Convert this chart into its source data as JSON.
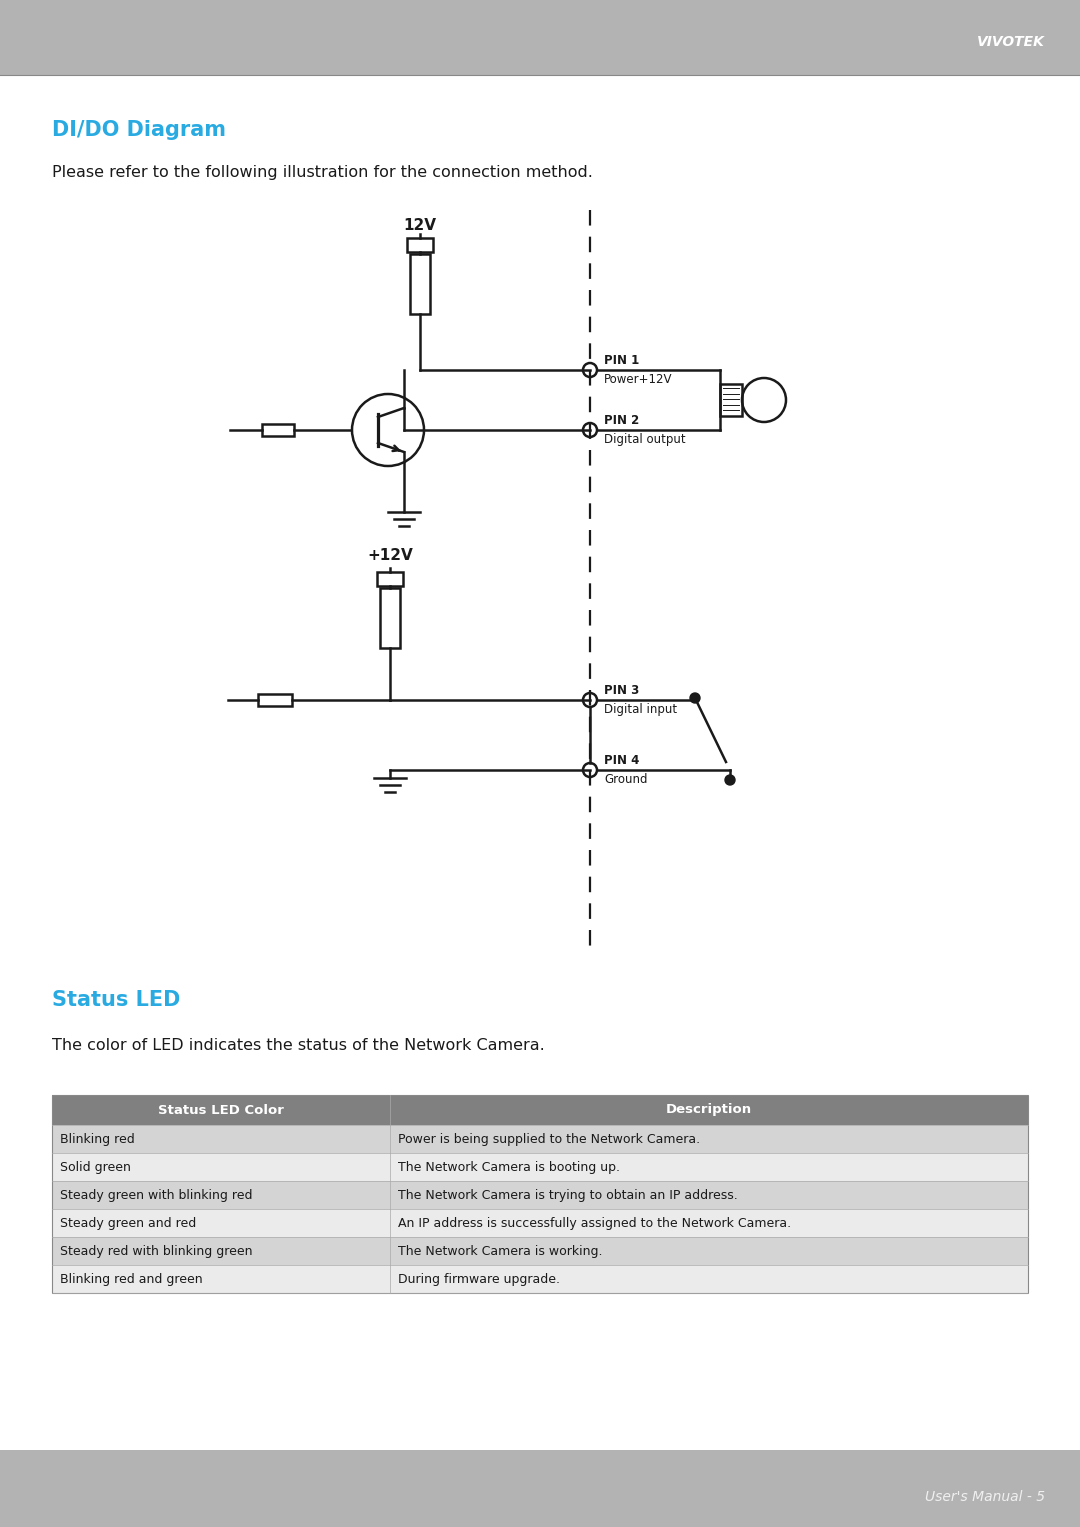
{
  "page_bg": "#ffffff",
  "header_bg": "#b3b3b3",
  "footer_bg": "#b3b3b3",
  "header_text": "VIVOTEK",
  "header_text_color": "#ffffff",
  "footer_text": "User's Manual - 5",
  "footer_text_color": "#f0f0f0",
  "title_dido": "DI/DO Diagram",
  "title_dido_color": "#29abe2",
  "subtitle_dido": "Please refer to the following illustration for the connection method.",
  "title_led": "Status LED",
  "title_led_color": "#29abe2",
  "subtitle_led": "The color of LED indicates the status of the Network Camera.",
  "table_header_bg": "#808080",
  "table_header_color": "#ffffff",
  "table_row_bg_odd": "#d4d4d4",
  "table_row_bg_even": "#ebebeb",
  "table_col1": "Status LED Color",
  "table_col2": "Description",
  "table_rows": [
    [
      "Blinking red",
      "Power is being supplied to the Network Camera."
    ],
    [
      "Solid green",
      "The Network Camera is booting up."
    ],
    [
      "Steady green with blinking red",
      "The Network Camera is trying to obtain an IP address."
    ],
    [
      "Steady green and red",
      "An IP address is successfully assigned to the Network Camera."
    ],
    [
      "Steady red with blinking green",
      "The Network Camera is working."
    ],
    [
      "Blinking red and green",
      "During firmware upgrade."
    ]
  ],
  "lc": "#1a1a1a",
  "lw": 1.8
}
